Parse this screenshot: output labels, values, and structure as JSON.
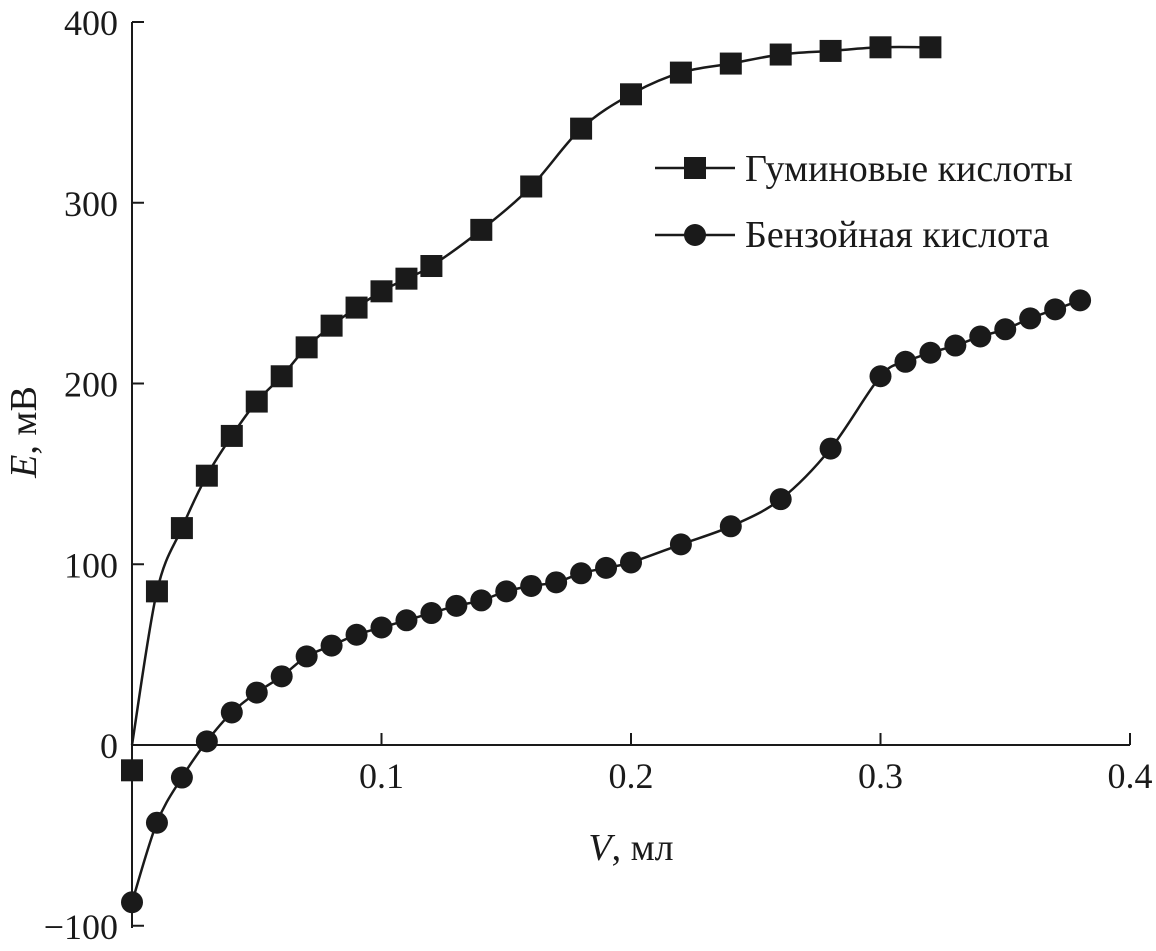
{
  "chart_data": {
    "type": "line",
    "xlabel": {
      "var": "V",
      "unit": ", мл"
    },
    "ylabel": {
      "var": "E",
      "unit": ", мВ"
    },
    "xlim": [
      0,
      0.4
    ],
    "ylim": [
      -100,
      400
    ],
    "x_ticks": [
      {
        "value": 0.1,
        "label": "0.1"
      },
      {
        "value": 0.2,
        "label": "0.2"
      },
      {
        "value": 0.3,
        "label": "0.3"
      },
      {
        "value": 0.4,
        "label": "0.4"
      }
    ],
    "y_ticks": [
      {
        "value": -100,
        "label": "−100"
      },
      {
        "value": 0,
        "label": "0"
      },
      {
        "value": 100,
        "label": "100"
      },
      {
        "value": 200,
        "label": "200"
      },
      {
        "value": 300,
        "label": "300"
      },
      {
        "value": 400,
        "label": "400"
      }
    ],
    "grid": false,
    "legend_position": "top-right",
    "series": [
      {
        "name": "Гуминовые кислоты",
        "marker": "square",
        "color": "#1a1a1a",
        "x": [
          0,
          0.01,
          0.02,
          0.03,
          0.04,
          0.05,
          0.06,
          0.07,
          0.08,
          0.09,
          0.1,
          0.11,
          0.12,
          0.14,
          0.16,
          0.18,
          0.2,
          0.22,
          0.24,
          0.26,
          0.28,
          0.3,
          0.32
        ],
        "y": [
          -14,
          85,
          120,
          149,
          171,
          190,
          204,
          220,
          232,
          242,
          251,
          258,
          265,
          285,
          309,
          341,
          360,
          372,
          377,
          382,
          384,
          386,
          386
        ]
      },
      {
        "name": "Бензойная кислота",
        "marker": "circle",
        "color": "#1a1a1a",
        "x": [
          0,
          0.01,
          0.02,
          0.03,
          0.04,
          0.05,
          0.06,
          0.07,
          0.08,
          0.09,
          0.1,
          0.11,
          0.12,
          0.13,
          0.14,
          0.15,
          0.16,
          0.17,
          0.18,
          0.19,
          0.2,
          0.22,
          0.24,
          0.26,
          0.28,
          0.3,
          0.31,
          0.32,
          0.33,
          0.34,
          0.35,
          0.36,
          0.37,
          0.38
        ],
        "y": [
          -87,
          -43,
          -18,
          2,
          18,
          29,
          38,
          49,
          55,
          61,
          65,
          69,
          73,
          77,
          80,
          85,
          88,
          90,
          95,
          98,
          101,
          111,
          121,
          136,
          164,
          204,
          212,
          217,
          221,
          226,
          230,
          236,
          241,
          246
        ]
      }
    ]
  }
}
